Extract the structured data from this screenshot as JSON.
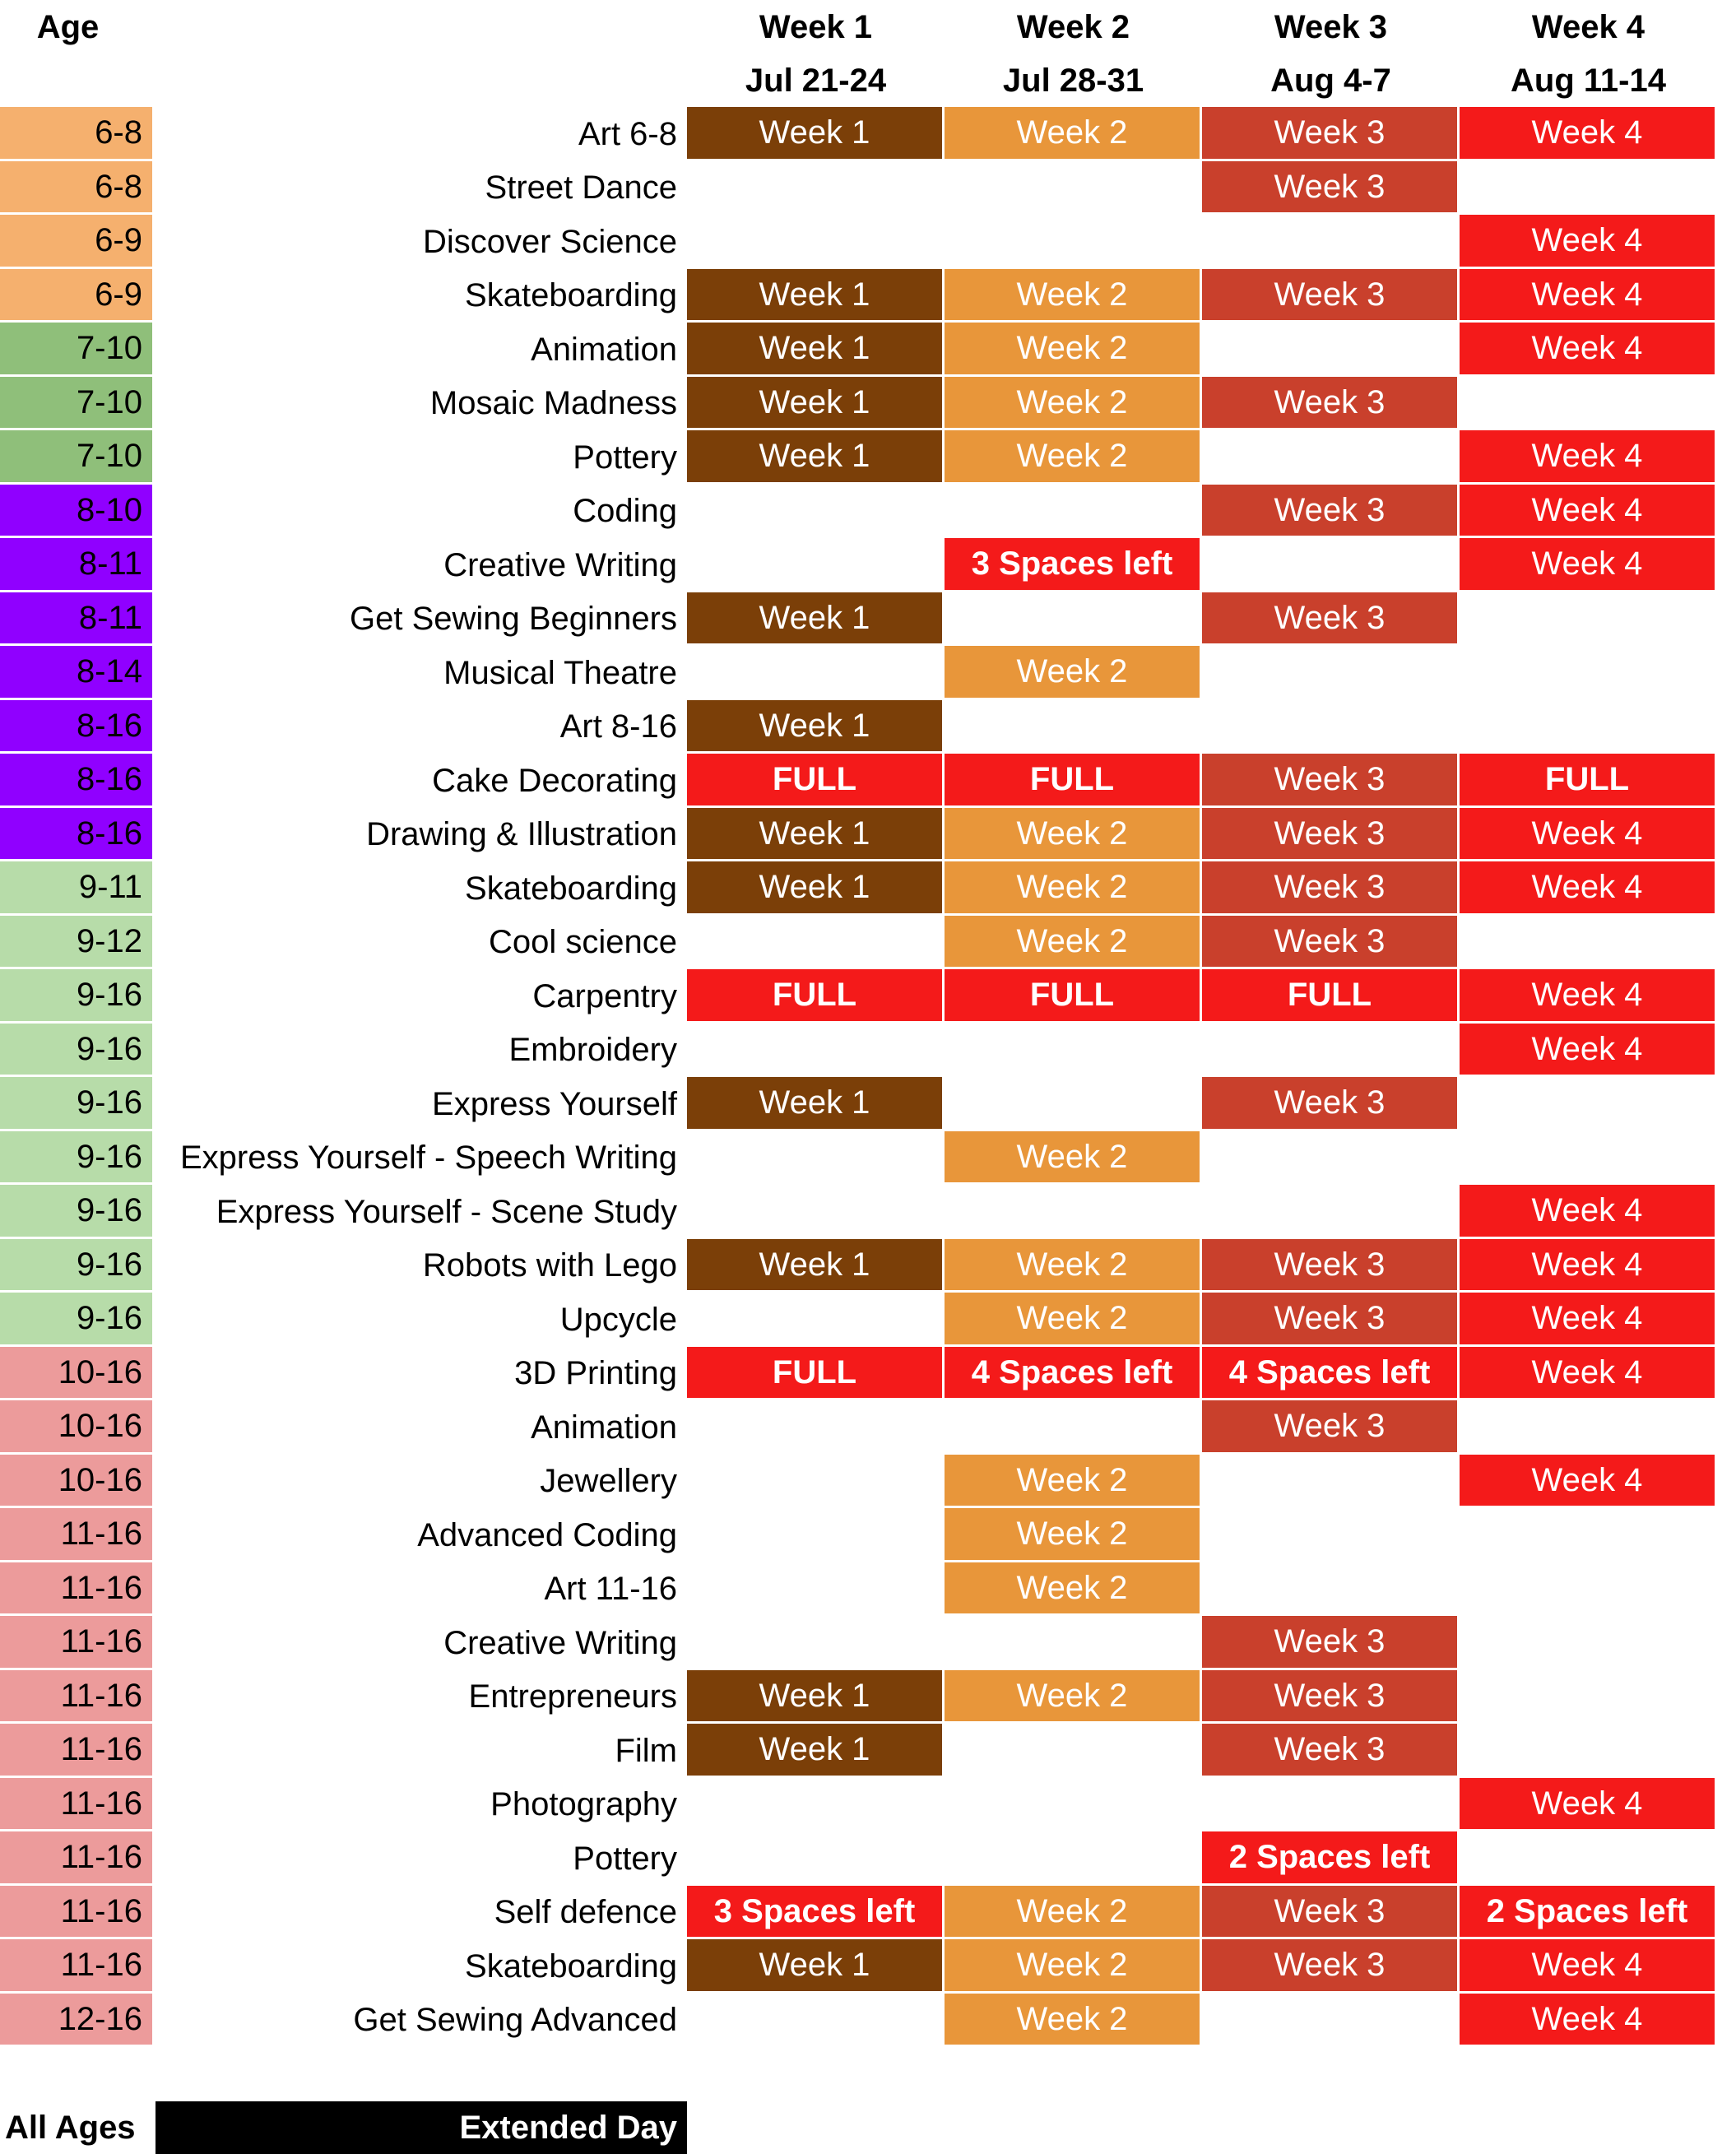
{
  "header": {
    "age_label": "Age",
    "weeks": [
      {
        "title": "Week 1",
        "dates": "Jul 21-24"
      },
      {
        "title": "Week 2",
        "dates": "Jul 28-31"
      },
      {
        "title": "Week 3",
        "dates": "Aug 4-7"
      },
      {
        "title": "Week 4",
        "dates": "Aug 11-14"
      }
    ]
  },
  "colors": {
    "age_6": "#f5b06e",
    "age_7": "#8fbf7a",
    "age_8": "#9000ff",
    "age_9": "#b7dca9",
    "age_10": "#ec9b9b",
    "week1": "#7b3f08",
    "week2": "#e8963a",
    "week3": "#c9402c",
    "week4": "#f41a1a",
    "alert": "#f41a1a"
  },
  "rows": [
    {
      "age": "6-8",
      "age_color": "age_6",
      "name": "Art 6-8",
      "cells": [
        "Week 1",
        "Week 2",
        "Week 3",
        "Week 4"
      ]
    },
    {
      "age": "6-8",
      "age_color": "age_6",
      "name": "Street Dance",
      "cells": [
        "",
        "",
        "Week 3",
        ""
      ]
    },
    {
      "age": "6-9",
      "age_color": "age_6",
      "name": "Discover Science",
      "cells": [
        "",
        "",
        "",
        "Week 4"
      ]
    },
    {
      "age": "6-9",
      "age_color": "age_6",
      "name": "Skateboarding",
      "cells": [
        "Week 1",
        "Week 2",
        "Week 3",
        "Week 4"
      ]
    },
    {
      "age": "7-10",
      "age_color": "age_7",
      "name": "Animation",
      "cells": [
        "Week 1",
        "Week 2",
        "",
        "Week 4"
      ]
    },
    {
      "age": "7-10",
      "age_color": "age_7",
      "name": "Mosaic Madness",
      "cells": [
        "Week 1",
        "Week 2",
        "Week 3",
        ""
      ]
    },
    {
      "age": "7-10",
      "age_color": "age_7",
      "name": "Pottery",
      "cells": [
        "Week 1",
        "Week 2",
        "",
        "Week 4"
      ]
    },
    {
      "age": "8-10",
      "age_color": "age_8",
      "name": "Coding",
      "cells": [
        "",
        "",
        "Week 3",
        "Week 4"
      ]
    },
    {
      "age": "8-11",
      "age_color": "age_8",
      "name": "Creative Writing",
      "cells": [
        "",
        "3 Spaces left",
        "",
        "Week 4"
      ]
    },
    {
      "age": "8-11",
      "age_color": "age_8",
      "name": "Get Sewing Beginners",
      "cells": [
        "Week 1",
        "",
        "Week 3",
        ""
      ]
    },
    {
      "age": "8-14",
      "age_color": "age_8",
      "name": "Musical Theatre",
      "cells": [
        "",
        "Week 2",
        "",
        ""
      ]
    },
    {
      "age": "8-16",
      "age_color": "age_8",
      "name": "Art 8-16",
      "cells": [
        "Week 1",
        "",
        "",
        ""
      ]
    },
    {
      "age": "8-16",
      "age_color": "age_8",
      "name": "Cake Decorating",
      "cells": [
        "FULL",
        "FULL",
        "Week 3",
        "FULL"
      ]
    },
    {
      "age": "8-16",
      "age_color": "age_8",
      "name": "Drawing & Illustration",
      "cells": [
        "Week 1",
        "Week 2",
        "Week 3",
        "Week 4"
      ]
    },
    {
      "age": "9-11",
      "age_color": "age_9",
      "name": "Skateboarding",
      "cells": [
        "Week 1",
        "Week 2",
        "Week 3",
        "Week 4"
      ]
    },
    {
      "age": "9-12",
      "age_color": "age_9",
      "name": "Cool science",
      "cells": [
        "",
        "Week 2",
        "Week 3",
        ""
      ]
    },
    {
      "age": "9-16",
      "age_color": "age_9",
      "name": "Carpentry",
      "cells": [
        "FULL",
        "FULL",
        "FULL",
        "Week 4"
      ]
    },
    {
      "age": "9-16",
      "age_color": "age_9",
      "name": "Embroidery",
      "cells": [
        "",
        "",
        "",
        "Week 4"
      ]
    },
    {
      "age": "9-16",
      "age_color": "age_9",
      "name": "Express Yourself",
      "cells": [
        "Week 1",
        "",
        "Week 3",
        ""
      ]
    },
    {
      "age": "9-16",
      "age_color": "age_9",
      "name": "Express Yourself - Speech Writing",
      "cells": [
        "",
        "Week 2",
        "",
        ""
      ]
    },
    {
      "age": "9-16",
      "age_color": "age_9",
      "name": "Express Yourself - Scene Study",
      "cells": [
        "",
        "",
        "",
        "Week 4"
      ]
    },
    {
      "age": "9-16",
      "age_color": "age_9",
      "name": "Robots with Lego",
      "cells": [
        "Week 1",
        "Week 2",
        "Week 3",
        "Week 4"
      ]
    },
    {
      "age": "9-16",
      "age_color": "age_9",
      "name": "Upcycle",
      "cells": [
        "",
        "Week 2",
        "Week 3",
        "Week 4"
      ]
    },
    {
      "age": "10-16",
      "age_color": "age_10",
      "name": "3D Printing",
      "cells": [
        "FULL",
        "4 Spaces left",
        "4 Spaces left",
        "Week 4"
      ]
    },
    {
      "age": "10-16",
      "age_color": "age_10",
      "name": "Animation",
      "cells": [
        "",
        "",
        "Week 3",
        ""
      ]
    },
    {
      "age": "10-16",
      "age_color": "age_10",
      "name": "Jewellery",
      "cells": [
        "",
        "Week 2",
        "",
        "Week 4"
      ]
    },
    {
      "age": "11-16",
      "age_color": "age_10",
      "name": "Advanced Coding",
      "cells": [
        "",
        "Week 2",
        "",
        ""
      ]
    },
    {
      "age": "11-16",
      "age_color": "age_10",
      "name": "Art 11-16",
      "cells": [
        "",
        "Week 2",
        "",
        ""
      ]
    },
    {
      "age": "11-16",
      "age_color": "age_10",
      "name": "Creative Writing",
      "cells": [
        "",
        "",
        "Week 3",
        ""
      ]
    },
    {
      "age": "11-16",
      "age_color": "age_10",
      "name": "Entrepreneurs",
      "cells": [
        "Week 1",
        "Week 2",
        "Week 3",
        ""
      ]
    },
    {
      "age": "11-16",
      "age_color": "age_10",
      "name": "Film",
      "cells": [
        "Week 1",
        "",
        "Week 3",
        ""
      ]
    },
    {
      "age": "11-16",
      "age_color": "age_10",
      "name": "Photography",
      "cells": [
        "",
        "",
        "",
        "Week 4"
      ]
    },
    {
      "age": "11-16",
      "age_color": "age_10",
      "name": "Pottery",
      "cells": [
        "",
        "",
        "2 Spaces left",
        ""
      ]
    },
    {
      "age": "11-16",
      "age_color": "age_10",
      "name": "Self defence",
      "cells": [
        "3 Spaces left",
        "Week 2",
        "Week 3",
        "2 Spaces left"
      ]
    },
    {
      "age": "11-16",
      "age_color": "age_10",
      "name": "Skateboarding",
      "cells": [
        "Week 1",
        "Week 2",
        "Week 3",
        "Week 4"
      ]
    },
    {
      "age": "12-16",
      "age_color": "age_10",
      "name": "Get Sewing Advanced",
      "cells": [
        "",
        "Week 2",
        "",
        "Week 4"
      ]
    }
  ],
  "footer": {
    "age": "All Ages",
    "label": "Extended Day"
  }
}
